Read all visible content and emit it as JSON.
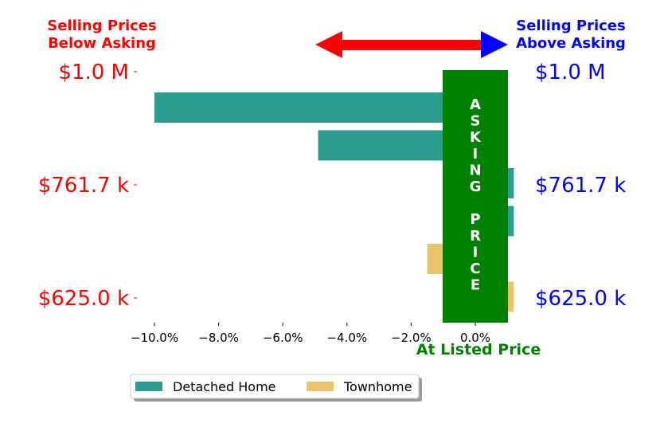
{
  "chart_data": {
    "type": "bar",
    "orientation": "horizontal",
    "series": [
      {
        "name": "Detached Home",
        "color": "#2a9d8f"
      },
      {
        "name": "Townhome",
        "color": "#e9c46a"
      }
    ],
    "bars": [
      {
        "series": "Detached Home",
        "value": -10.0
      },
      {
        "series": "Detached Home",
        "value": -4.9
      },
      {
        "series": "Detached Home",
        "value": 1.2
      },
      {
        "series": "Detached Home",
        "value": 1.2
      },
      {
        "series": "Townhome",
        "value": -1.5
      },
      {
        "series": "Townhome",
        "value": 1.2
      }
    ],
    "xlim": [
      -10.9,
      1.2
    ],
    "x_ticks": [
      -10,
      -8,
      -6,
      -4,
      -2,
      0
    ],
    "x_tick_labels": [
      "−10.0%",
      "−8.0%",
      "−6.0%",
      "−4.0%",
      "−2.0%",
      "0.0%"
    ],
    "y_tick_labels_left": [
      "$1.0 M",
      "$761.7 k",
      "$625.0 k"
    ],
    "y_tick_labels_right": [
      "$1.0 M",
      "$761.7 k",
      "$625.0 k"
    ],
    "left_header": [
      "Selling Prices",
      "Below Asking"
    ],
    "right_header": [
      "Selling Prices",
      "Above Asking"
    ],
    "band_letters": [
      "A",
      "S",
      "K",
      "I",
      "N",
      "G",
      "",
      "P",
      "R",
      "I",
      "C",
      "E"
    ],
    "center_label": "At Listed Price",
    "legend_position": "bottom-left",
    "colors": {
      "below": "#ff0000",
      "above": "#0000ff",
      "asking_band": "#008000"
    }
  }
}
